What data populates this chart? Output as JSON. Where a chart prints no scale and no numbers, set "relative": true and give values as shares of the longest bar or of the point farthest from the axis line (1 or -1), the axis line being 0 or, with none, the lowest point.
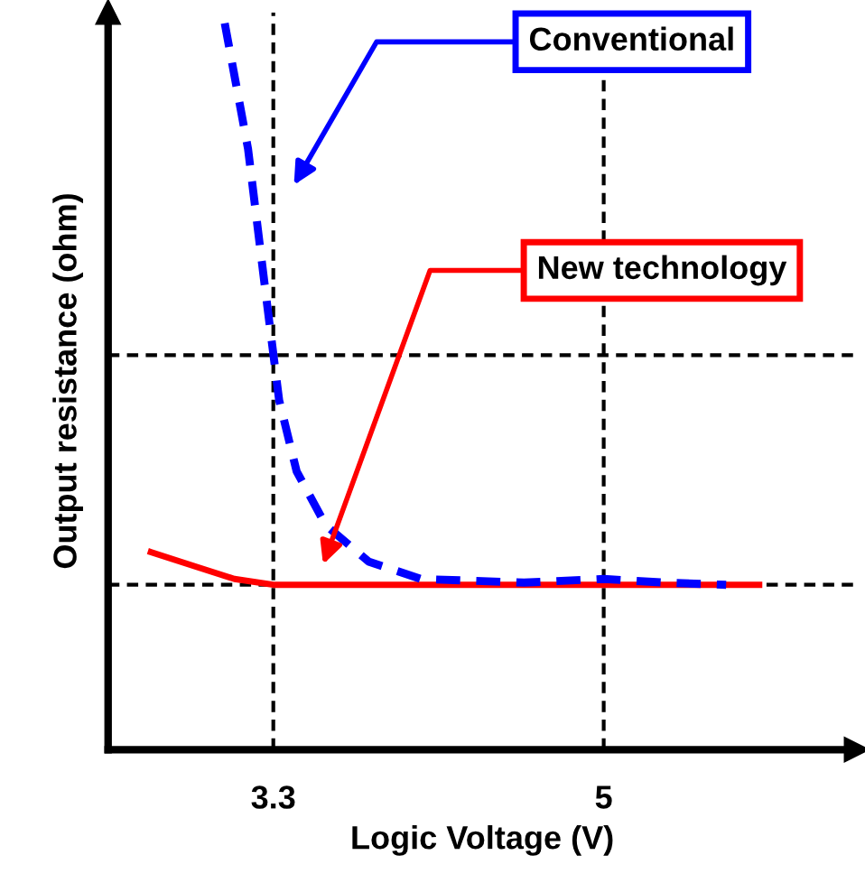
{
  "chart_data": {
    "type": "line",
    "xlabel": "Logic Voltage (V)",
    "ylabel": "Output resistance (ohm)",
    "relative": true,
    "xlim": [
      2.45,
      6.3
    ],
    "xticks": [
      3.3,
      5
    ],
    "grid": "x",
    "series": [
      {
        "name": "Conventional",
        "color": "#0000ff",
        "line_style": "dashed",
        "x": [
          3.05,
          3.17,
          3.26,
          3.33,
          3.42,
          3.57,
          3.79,
          4.06,
          4.59,
          5.0,
          5.31,
          5.63
        ],
        "values": [
          1.0,
          0.827,
          0.63,
          0.481,
          0.383,
          0.309,
          0.259,
          0.235,
          0.23,
          0.235,
          0.23,
          0.227
        ]
      },
      {
        "name": "New technology",
        "color": "#ff0000",
        "line_style": "solid",
        "x": [
          2.67,
          2.9,
          3.1,
          3.3,
          3.6,
          4.0,
          4.5,
          5.0,
          5.5,
          5.8
        ],
        "values": [
          0.272,
          0.252,
          0.235,
          0.227,
          0.227,
          0.227,
          0.227,
          0.227,
          0.227,
          0.227
        ]
      }
    ],
    "ref_lines": [
      {
        "axis": "y",
        "value": 0.227,
        "color": "#000000",
        "line_style": "dashed"
      },
      {
        "axis": "y",
        "value": 0.543,
        "color": "#000000",
        "line_style": "dashed"
      }
    ]
  }
}
